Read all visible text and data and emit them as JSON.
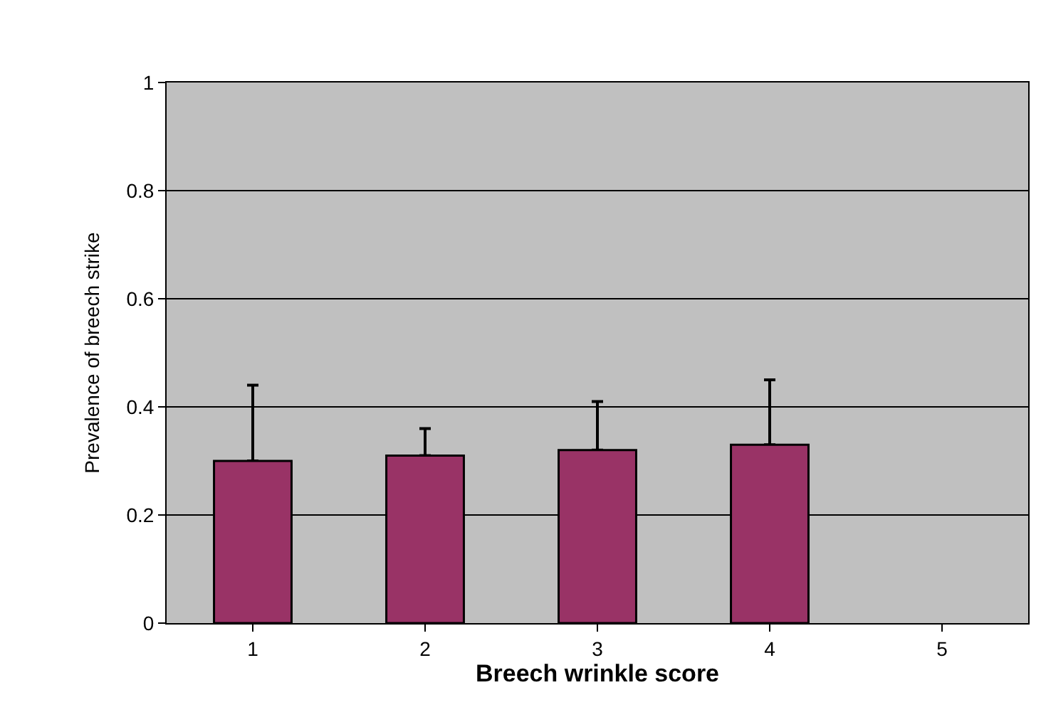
{
  "chart_data": {
    "type": "bar",
    "xlabel": "Breech wrinkle score",
    "ylabel": "Prevalence of breech strike",
    "categories": [
      "1",
      "2",
      "3",
      "4",
      "5"
    ],
    "series": [
      {
        "color": "#993366",
        "values": [
          0.3,
          0.31,
          0.32,
          0.33,
          null
        ],
        "errors": [
          [
            0.3,
            0.44
          ],
          [
            0.31,
            0.36
          ],
          [
            0.32,
            0.41
          ],
          [
            0.33,
            0.45
          ],
          null
        ]
      }
    ],
    "ylim": [
      0,
      1
    ],
    "yticks": [
      0,
      0.2,
      0.4,
      0.6,
      0.8,
      1
    ],
    "grid": "y"
  }
}
